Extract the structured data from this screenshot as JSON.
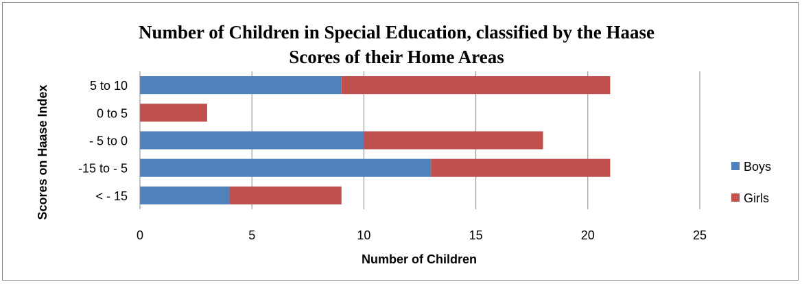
{
  "chart_data": {
    "type": "bar",
    "orientation": "horizontal",
    "stacked": true,
    "title_lines": [
      "Number of Children in Special Education, classified by the Haase",
      "Scores of their Home Areas"
    ],
    "xlabel": "Number of Children",
    "ylabel": "Scores on Haase Index",
    "categories": [
      "5 to 10",
      "0 to 5",
      "- 5 to 0",
      "-15 to - 5",
      "< - 15"
    ],
    "series": [
      {
        "name": "Boys",
        "color": "#4F81BD",
        "values": [
          9,
          0,
          10,
          13,
          4
        ]
      },
      {
        "name": "Girls",
        "color": "#C0504D",
        "values": [
          12,
          3,
          8,
          8,
          5
        ]
      }
    ],
    "xlim": [
      0,
      25
    ],
    "xticks": [
      "0",
      "5",
      "10",
      "15",
      "20",
      "25"
    ],
    "grid": true,
    "legend_position": "right"
  }
}
